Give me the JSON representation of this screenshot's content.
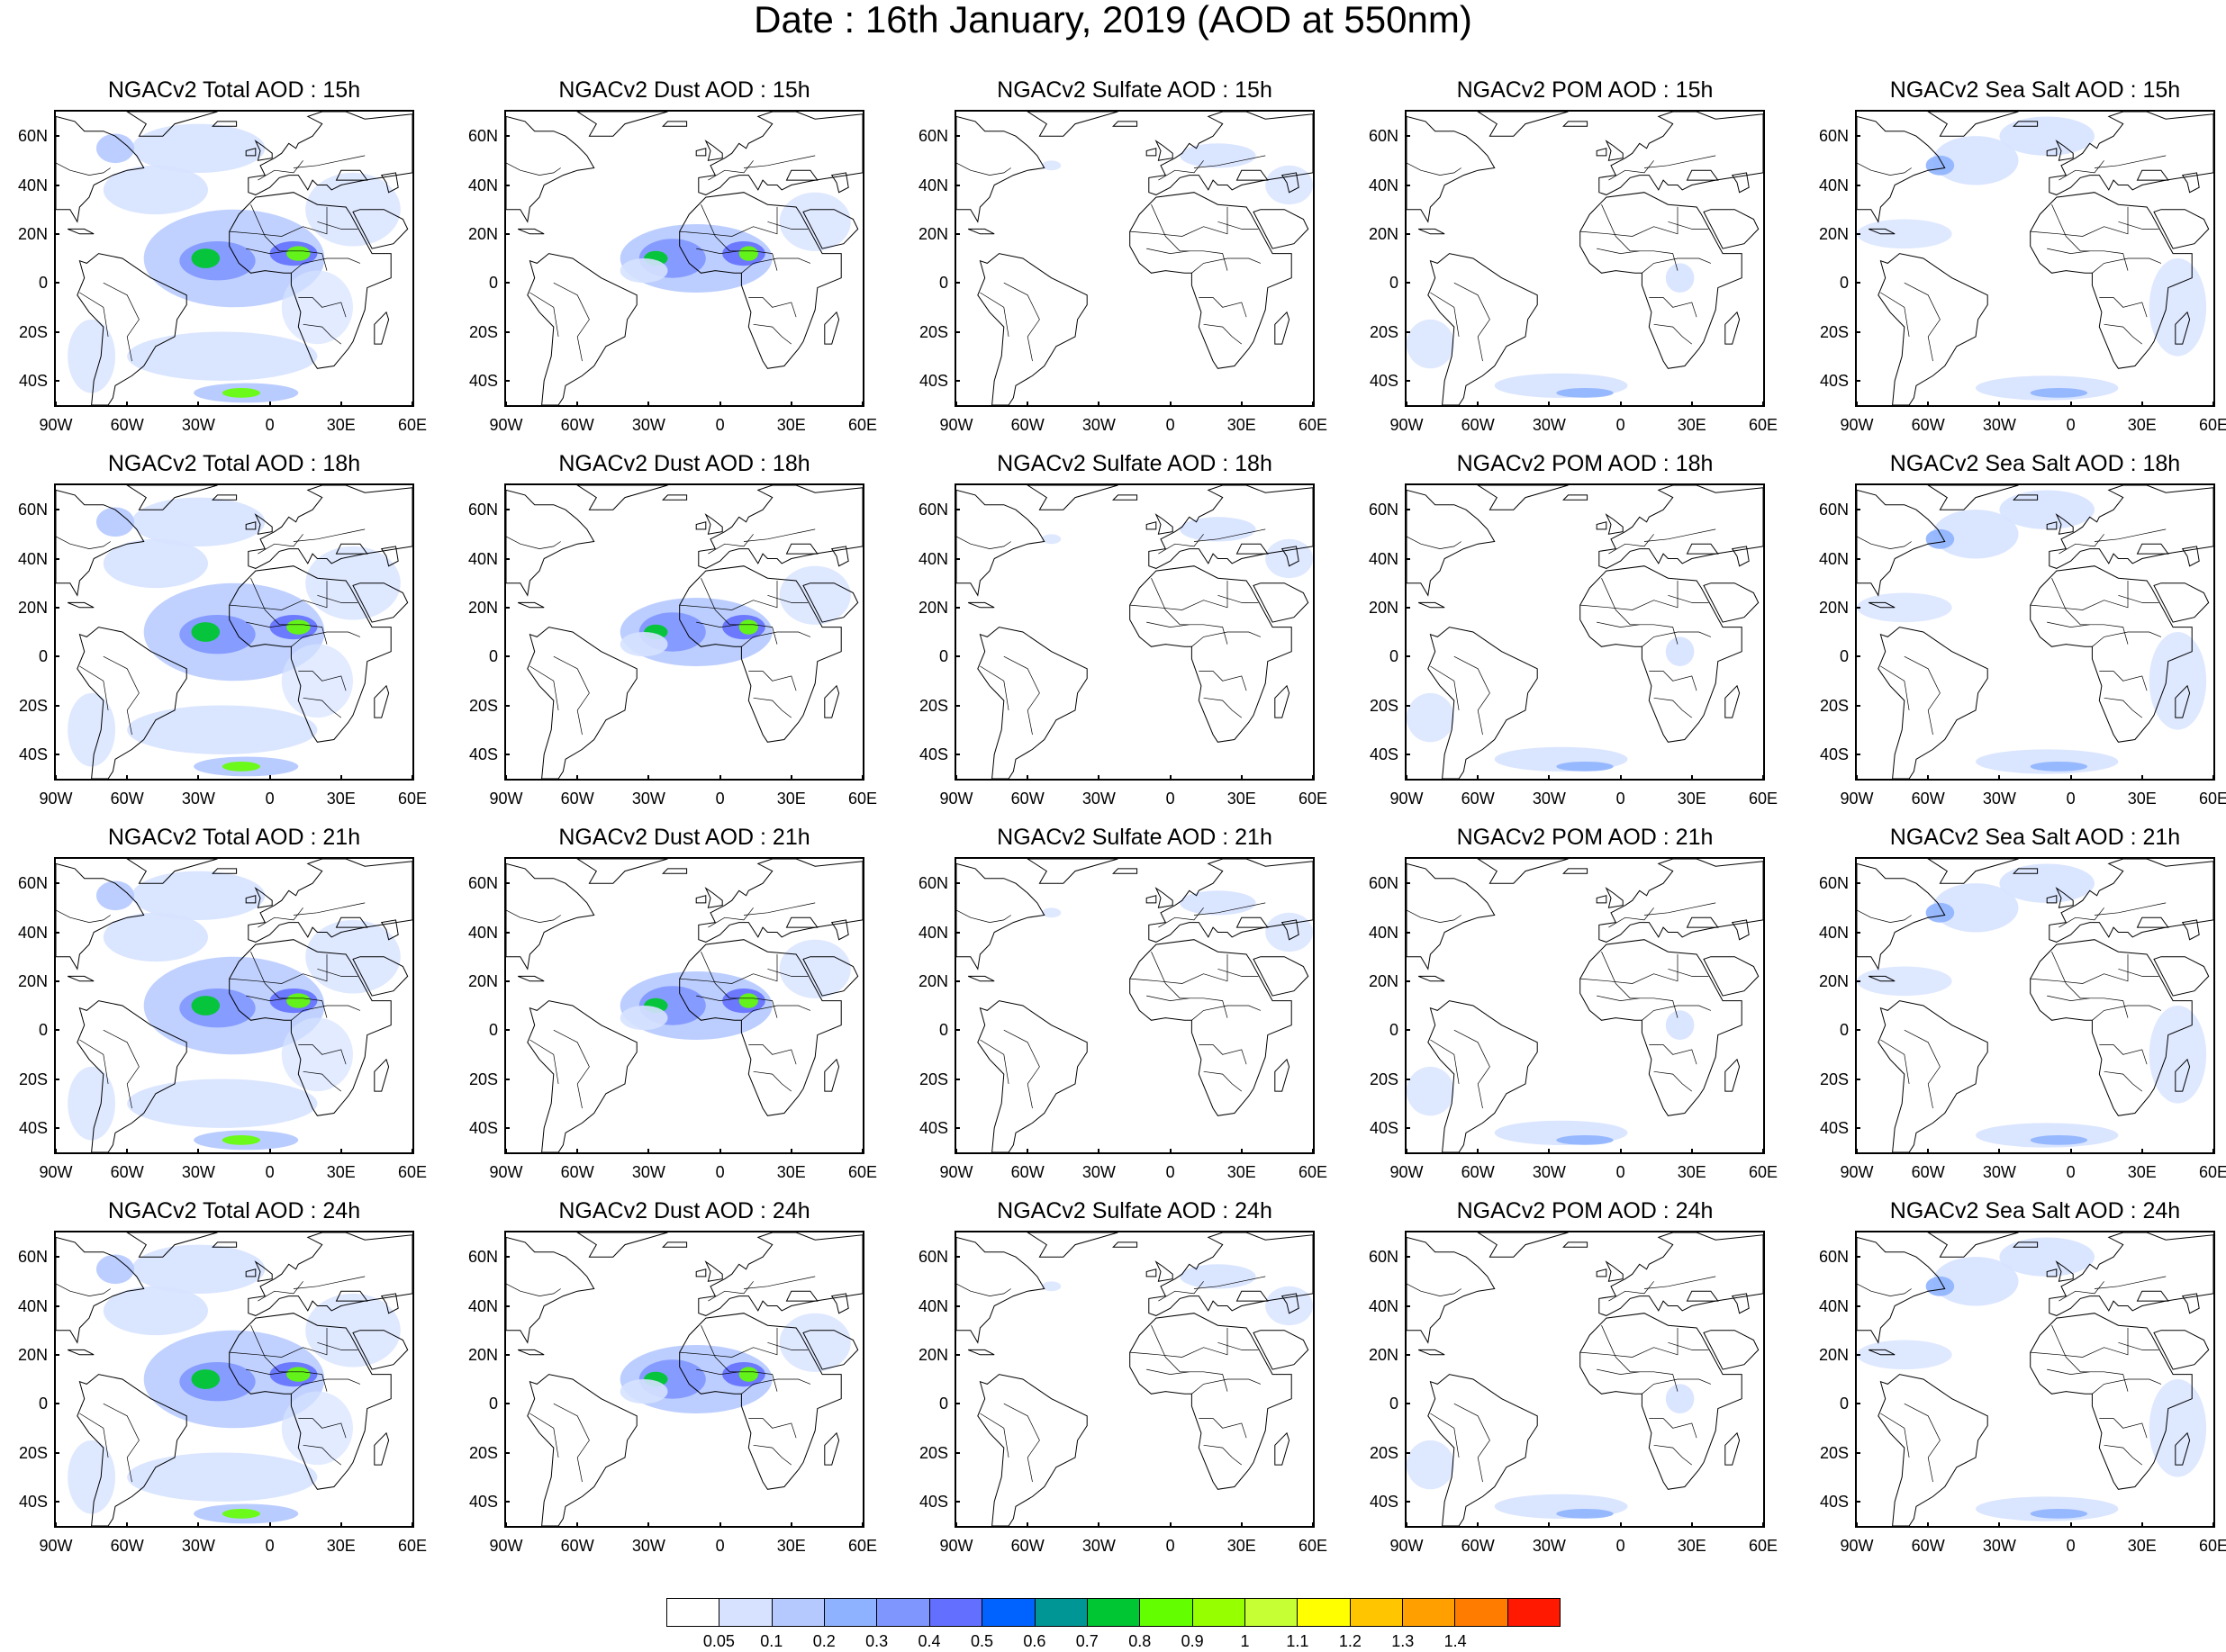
{
  "title": "Date : 16th January, 2019 (AOD at 550nm)",
  "rows": [
    {
      "hour": "15h",
      "panels": [
        {
          "title": "NGACv2 Total AOD : 15h",
          "species": "total"
        },
        {
          "title": "NGACv2 Dust AOD : 15h",
          "species": "dust"
        },
        {
          "title": "NGACv2 Sulfate AOD : 15h",
          "species": "sulfate"
        },
        {
          "title": "NGACv2 POM AOD : 15h",
          "species": "pom"
        },
        {
          "title": "NGACv2 Sea Salt AOD : 15h",
          "species": "seasalt"
        }
      ]
    },
    {
      "hour": "18h",
      "panels": [
        {
          "title": "NGACv2 Total AOD : 18h",
          "species": "total"
        },
        {
          "title": "NGACv2 Dust AOD : 18h",
          "species": "dust"
        },
        {
          "title": "NGACv2 Sulfate AOD : 18h",
          "species": "sulfate"
        },
        {
          "title": "NGACv2 POM AOD : 18h",
          "species": "pom"
        },
        {
          "title": "NGACv2 Sea Salt AOD : 18h",
          "species": "seasalt"
        }
      ]
    },
    {
      "hour": "21h",
      "panels": [
        {
          "title": "NGACv2 Total AOD : 21h",
          "species": "total"
        },
        {
          "title": "NGACv2 Dust AOD : 21h",
          "species": "dust"
        },
        {
          "title": "NGACv2 Sulfate AOD : 21h",
          "species": "sulfate"
        },
        {
          "title": "NGACv2 POM AOD : 21h",
          "species": "pom"
        },
        {
          "title": "NGACv2 Sea Salt AOD : 21h",
          "species": "seasalt"
        }
      ]
    },
    {
      "hour": "24h",
      "panels": [
        {
          "title": "NGACv2 Total AOD : 24h",
          "species": "total"
        },
        {
          "title": "NGACv2 Dust AOD : 24h",
          "species": "dust"
        },
        {
          "title": "NGACv2 Sulfate AOD : 24h",
          "species": "sulfate"
        },
        {
          "title": "NGACv2 POM AOD : 24h",
          "species": "pom"
        },
        {
          "title": "NGACv2 Sea Salt  AOD : 24h",
          "species": "seasalt"
        }
      ]
    }
  ],
  "lat_ticks": [
    "60N",
    "40N",
    "20N",
    "0",
    "20S",
    "40S"
  ],
  "lat_values": [
    60,
    40,
    20,
    0,
    -20,
    -40
  ],
  "lon_ticks": [
    "90W",
    "60W",
    "30W",
    "0",
    "30E",
    "60E"
  ],
  "lon_values": [
    -90,
    -60,
    -30,
    0,
    30,
    60
  ],
  "map_extent": {
    "lon_min": -90,
    "lon_max": 60,
    "lat_min": -50,
    "lat_max": 70
  },
  "colorbar": {
    "labels": [
      "0.05",
      "0.1",
      "0.2",
      "0.3",
      "0.4",
      "0.5",
      "0.6",
      "0.7",
      "0.8",
      "0.9",
      "1",
      "1.1",
      "1.2",
      "1.3",
      "1.4"
    ],
    "colors": [
      "#ffffff",
      "#d6e2ff",
      "#b5c9ff",
      "#8eb2ff",
      "#7f96ff",
      "#6370ff",
      "#0063ff",
      "#009696",
      "#00c633",
      "#63ff00",
      "#96ff00",
      "#c6ff33",
      "#ffff00",
      "#ffc600",
      "#ffa000",
      "#ff7c00",
      "#ff1900"
    ]
  }
}
